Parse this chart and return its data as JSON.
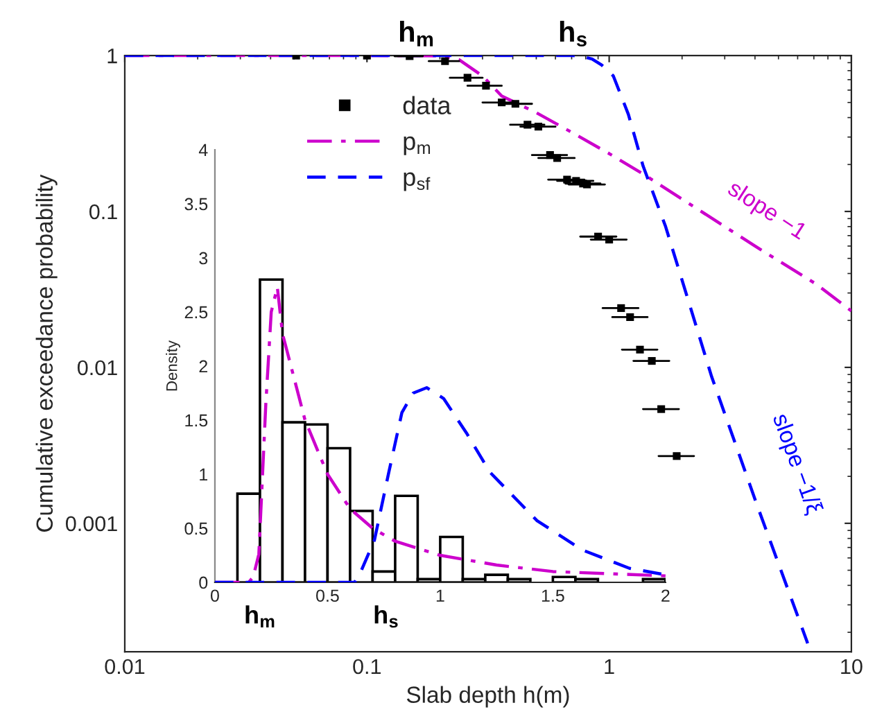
{
  "chart_data": [
    {
      "type": "line",
      "log": "xy",
      "xlabel": "Slab depth h(m)",
      "ylabel": "Cumulative exceedance probability",
      "xlim": [
        0.01,
        10
      ],
      "ylim": [
        0.00015,
        1
      ],
      "xticks": [
        0.01,
        0.1,
        1,
        10
      ],
      "yticks": [
        0.001,
        0.01,
        0.1,
        1
      ],
      "legend": "top left",
      "series": [
        {
          "name": "data",
          "type": "scatter",
          "marker": "square",
          "color": "#000000",
          "x": [
            0.051,
            0.1,
            0.15,
            0.21,
            0.26,
            0.31,
            0.36,
            0.41,
            0.46,
            0.51,
            0.57,
            0.61,
            0.67,
            0.73,
            0.78,
            0.81,
            0.9,
            1.0,
            1.12,
            1.22,
            1.34,
            1.5,
            1.64,
            1.9
          ],
          "values": [
            1,
            1,
            0.99,
            0.92,
            0.72,
            0.64,
            0.5,
            0.49,
            0.36,
            0.35,
            0.23,
            0.22,
            0.16,
            0.157,
            0.151,
            0.149,
            0.069,
            0.066,
            0.024,
            0.021,
            0.013,
            0.011,
            0.0054,
            0.0027
          ],
          "xerrors": [
            null,
            null,
            [
              0.13,
              0.17
            ],
            [
              0.18,
              0.24
            ],
            [
              0.22,
              0.3
            ],
            [
              0.26,
              0.36
            ],
            [
              0.3,
              0.42
            ],
            [
              0.35,
              0.48
            ],
            [
              0.39,
              0.54
            ],
            [
              0.43,
              0.6
            ],
            [
              0.48,
              0.67
            ],
            [
              0.51,
              0.72
            ],
            [
              0.56,
              0.79
            ],
            [
              0.61,
              0.86
            ],
            [
              0.66,
              0.92
            ],
            [
              0.68,
              0.96
            ],
            [
              0.76,
              1.07
            ],
            [
              0.84,
              1.18
            ],
            [
              0.94,
              1.32
            ],
            [
              1.03,
              1.44
            ],
            [
              1.13,
              1.58
            ],
            [
              1.26,
              1.77
            ],
            [
              1.38,
              1.94
            ],
            [
              1.6,
              2.24
            ]
          ]
        },
        {
          "name": "p$_{m}$",
          "type": "line",
          "line_style": "dashdot",
          "color": "#cc00cc",
          "x": [
            0.01,
            0.1,
            0.2,
            0.24,
            0.3,
            0.36,
            0.5,
            0.68,
            1.0,
            1.38,
            2,
            4,
            7.2,
            10
          ],
          "values": [
            1,
            1,
            0.995,
            0.94,
            0.74,
            0.55,
            0.43,
            0.33,
            0.235,
            0.174,
            0.12,
            0.06,
            0.034,
            0.023
          ]
        },
        {
          "name": "p$_{sf}$",
          "type": "line",
          "line_style": "dashed",
          "color": "#0000ff",
          "x": [
            0.01,
            0.7,
            0.76,
            0.85,
            0.93,
            1.04,
            1.2,
            1.38,
            1.71,
            2.65,
            4.1,
            6.6
          ],
          "values": [
            1,
            1,
            0.995,
            0.95,
            0.87,
            0.74,
            0.42,
            0.196,
            0.08,
            0.0087,
            0.00128,
            0.00017
          ]
        }
      ],
      "annotations": [
        {
          "text": "h$_{m}$",
          "x": 0.16,
          "y": 1
        },
        {
          "text": "h$_{s}$",
          "x": 0.71,
          "y": 1
        },
        {
          "text": "slope −1",
          "x": 4,
          "y": 0.06
        },
        {
          "text": "slope −1/ξ",
          "x": 4.1,
          "y": 0.00128
        }
      ]
    },
    {
      "type": "histogram",
      "ylabel": "Density",
      "color": "#ffffff",
      "xlim": [
        0,
        2
      ],
      "ylim": [
        0,
        4
      ],
      "xticks": [
        0,
        0.5,
        1,
        1.5,
        2
      ],
      "yticks": [
        0,
        0.5,
        1,
        1.5,
        2,
        2.5,
        3,
        3.5,
        4
      ],
      "bins": [
        0.1,
        0.2,
        0.3,
        0.4,
        0.5,
        0.6,
        0.7,
        0.8,
        0.9,
        1.0,
        1.1,
        1.2,
        1.3,
        1.4,
        1.5,
        1.6,
        1.7,
        1.8,
        1.9,
        2.0
      ],
      "values": [
        0.82,
        2.8,
        1.48,
        1.46,
        1.24,
        0.66,
        0.1,
        0.8,
        0.03,
        0.42,
        0.03,
        0.07,
        0.03,
        0,
        0.05,
        0.03,
        0,
        0,
        0.03
      ],
      "series": [
        {
          "type": "line",
          "line_style": "dashdot",
          "color": "#cc00cc",
          "x": [
            0,
            0.15,
            0.17,
            0.195,
            0.226,
            0.25,
            0.277,
            0.3,
            0.35,
            0.4,
            0.5,
            0.6,
            0.7,
            0.8,
            1.0,
            1.25,
            1.5,
            1.75,
            2.0
          ],
          "values": [
            0,
            0,
            0.05,
            0.26,
            1.65,
            2.5,
            2.73,
            2.3,
            1.9,
            1.5,
            1.0,
            0.68,
            0.5,
            0.38,
            0.25,
            0.16,
            0.1,
            0.08,
            0.06
          ]
        },
        {
          "type": "line",
          "line_style": "dashed",
          "color": "#0000ff",
          "x": [
            0,
            0.62,
            0.646,
            0.708,
            0.77,
            0.83,
            0.88,
            0.94,
            1.015,
            1.12,
            1.22,
            1.43,
            1.63,
            1.84,
            2.0
          ],
          "values": [
            0,
            0,
            0.09,
            0.39,
            1.0,
            1.57,
            1.75,
            1.8,
            1.7,
            1.37,
            1.02,
            0.57,
            0.3,
            0.13,
            0.07
          ]
        }
      ],
      "annotations": [
        {
          "text": "h$_{m}$",
          "x": 0.2,
          "y": 0
        },
        {
          "text": "h$_{s}$",
          "x": 0.76,
          "y": 0
        }
      ]
    }
  ]
}
